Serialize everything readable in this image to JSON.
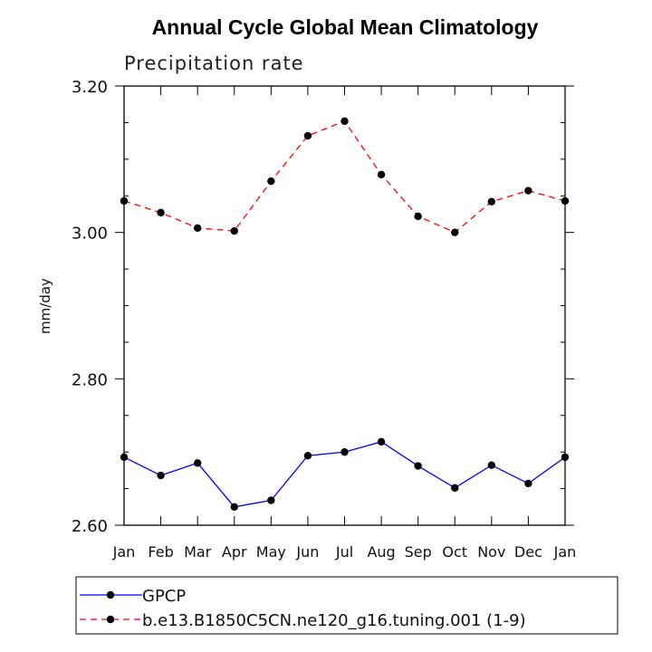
{
  "chart_data": {
    "type": "line",
    "title": "Annual Cycle Global Mean Climatology",
    "subtitle": "Precipitation rate",
    "xlabel": "",
    "ylabel": "mm/day",
    "categories": [
      "Jan",
      "Feb",
      "Mar",
      "Apr",
      "May",
      "Jun",
      "Jul",
      "Aug",
      "Sep",
      "Oct",
      "Nov",
      "Dec",
      "Jan"
    ],
    "ylim": [
      2.6,
      3.2
    ],
    "yticks": [
      "2.60",
      "2.80",
      "3.00",
      "3.20"
    ],
    "grid": false,
    "legend_position": "bottom",
    "series": [
      {
        "name": "GPCP",
        "color": "#0000ff",
        "style": "solid",
        "marker": "circle",
        "values": [
          2.693,
          2.668,
          2.685,
          2.625,
          2.634,
          2.695,
          2.7,
          2.714,
          2.681,
          2.651,
          2.682,
          2.657,
          2.693
        ]
      },
      {
        "name": "b.e13.B1850C5CN.ne120_g16.tuning.001 (1-9)",
        "color": "#ff0000",
        "style": "dashed",
        "marker": "circle",
        "values": [
          3.043,
          3.027,
          3.006,
          3.002,
          3.07,
          3.132,
          3.152,
          3.079,
          3.022,
          3.0,
          3.042,
          3.057,
          3.043
        ]
      }
    ]
  }
}
